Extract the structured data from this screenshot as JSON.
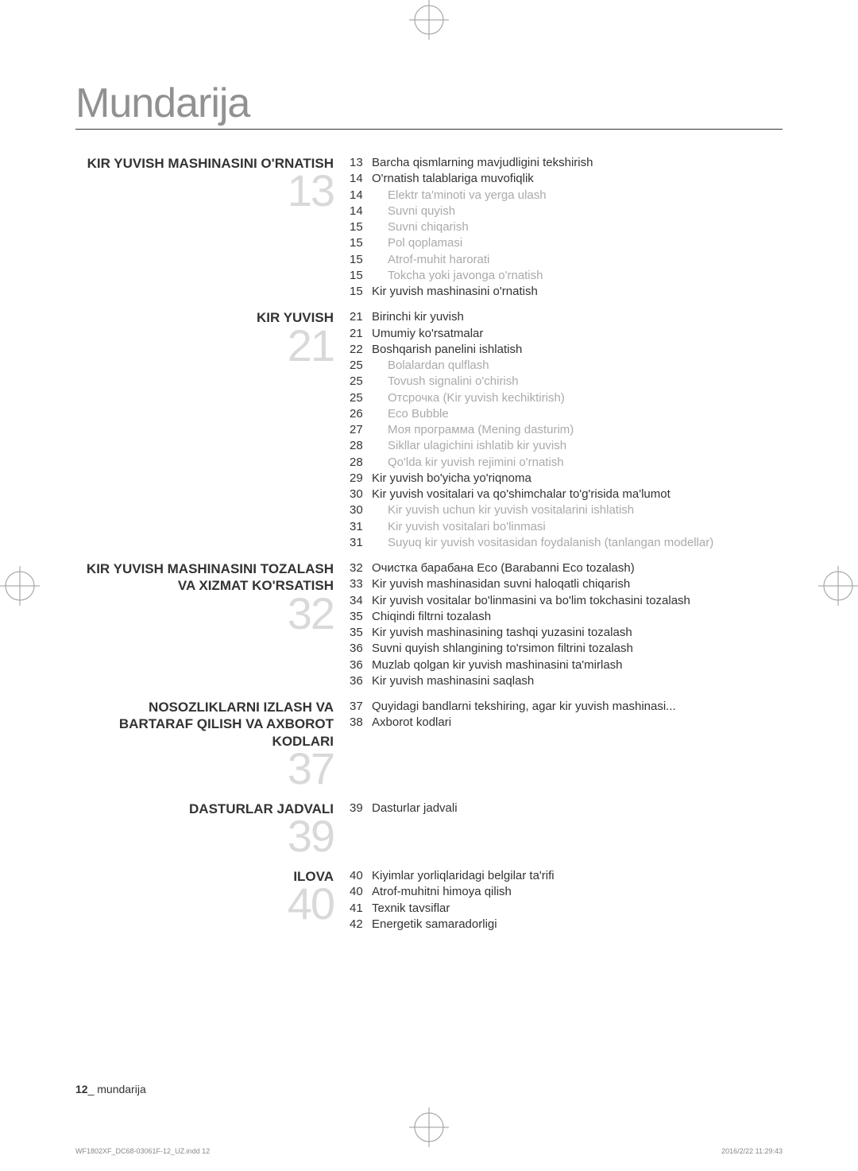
{
  "pageTitle": "Mundarija",
  "sections": [
    {
      "heading": "KIR YUVISH MASHINASINI O'RNATISH",
      "bigNumber": "13",
      "items": [
        {
          "page": "13",
          "text": "Barcha qismlarning mavjudligini tekshirish",
          "sub": false
        },
        {
          "page": "14",
          "text": "O'rnatish talablariga muvofiqlik",
          "sub": false
        },
        {
          "page": "14",
          "text": "Elektr ta'minoti va yerga ulash",
          "sub": true
        },
        {
          "page": "14",
          "text": "Suvni quyish",
          "sub": true
        },
        {
          "page": "15",
          "text": "Suvni chiqarish",
          "sub": true
        },
        {
          "page": "15",
          "text": "Pol qoplamasi",
          "sub": true
        },
        {
          "page": "15",
          "text": "Atrof-muhit harorati",
          "sub": true
        },
        {
          "page": "15",
          "text": "Tokcha yoki javonga o'rnatish",
          "sub": true
        },
        {
          "page": "15",
          "text": "Kir yuvish mashinasini o'rnatish",
          "sub": false
        }
      ]
    },
    {
      "heading": "KIR YUVISH",
      "bigNumber": "21",
      "items": [
        {
          "page": "21",
          "text": "Birinchi kir yuvish",
          "sub": false
        },
        {
          "page": "21",
          "text": "Umumiy ko'rsatmalar",
          "sub": false
        },
        {
          "page": "22",
          "text": "Boshqarish panelini ishlatish",
          "sub": false
        },
        {
          "page": "25",
          "text": "Bolalardan qulflash",
          "sub": true
        },
        {
          "page": "25",
          "text": "Tovush signalini o'chirish",
          "sub": true
        },
        {
          "page": "25",
          "text": "Отсрочка (Kir yuvish kechiktirish)",
          "sub": true
        },
        {
          "page": "26",
          "text": "Eco Bubble",
          "sub": true
        },
        {
          "page": "27",
          "text": "Моя программа (Mening dasturim)",
          "sub": true
        },
        {
          "page": "28",
          "text": "Sikllar ulagichini ishlatib kir yuvish",
          "sub": true
        },
        {
          "page": "28",
          "text": "Qo'lda kir yuvish rejimini o'rnatish",
          "sub": true
        },
        {
          "page": "29",
          "text": "Kir yuvish bo'yicha yo'riqnoma",
          "sub": false
        },
        {
          "page": "30",
          "text": "Kir yuvish vositalari va qo'shimchalar to'g'risida ma'lumot",
          "sub": false
        },
        {
          "page": "30",
          "text": "Kir yuvish uchun kir yuvish vositalarini ishlatish",
          "sub": true
        },
        {
          "page": "31",
          "text": "Kir yuvish vositalari bo'linmasi",
          "sub": true
        },
        {
          "page": "31",
          "text": "Suyuq kir yuvish vositasidan foydalanish (tanlangan modellar)",
          "sub": true
        }
      ]
    },
    {
      "heading": "KIR YUVISH MASHINASINI TOZALASH VA XIZMAT KO'RSATISH",
      "bigNumber": "32",
      "items": [
        {
          "page": "32",
          "text": "Очистка барабана Eco (Barabanni Eco tozalash)",
          "sub": false
        },
        {
          "page": "33",
          "text": "Kir yuvish mashinasidan suvni haloqatli chiqarish",
          "sub": false
        },
        {
          "page": "34",
          "text": "Kir yuvish vositalar bo'linmasini va bo'lim tokchasini tozalash",
          "sub": false
        },
        {
          "page": "35",
          "text": "Chiqindi filtrni tozalash",
          "sub": false
        },
        {
          "page": "35",
          "text": "Kir yuvish mashinasining tashqi yuzasini tozalash",
          "sub": false
        },
        {
          "page": "36",
          "text": "Suvni quyish shlangining to'rsimon filtrini tozalash",
          "sub": false
        },
        {
          "page": "36",
          "text": "Muzlab qolgan kir yuvish mashinasini ta'mirlash",
          "sub": false
        },
        {
          "page": "36",
          "text": "Kir yuvish mashinasini saqlash",
          "sub": false
        }
      ]
    },
    {
      "heading": "NOSOZLIKLARNI IZLASH VA BARTARAF QILISH VA AXBOROT KODLARI",
      "bigNumber": "37",
      "items": [
        {
          "page": "37",
          "text": "Quyidagi bandlarni tekshiring, agar kir yuvish mashinasi...",
          "sub": false
        },
        {
          "page": "38",
          "text": "Axborot kodlari",
          "sub": false
        }
      ]
    },
    {
      "heading": "DASTURLAR JADVALI",
      "bigNumber": "39",
      "items": [
        {
          "page": "39",
          "text": "Dasturlar jadvali",
          "sub": false
        }
      ]
    },
    {
      "heading": "ILOVA",
      "bigNumber": "40",
      "items": [
        {
          "page": "40",
          "text": "Kiyimlar yorliqlaridagi belgilar ta'rifi",
          "sub": false
        },
        {
          "page": "40",
          "text": "Atrof-muhitni himoya qilish",
          "sub": false
        },
        {
          "page": "41",
          "text": "Texnik tavsiflar",
          "sub": false
        },
        {
          "page": "42",
          "text": "Energetik samaradorligi",
          "sub": false
        }
      ]
    }
  ],
  "footer": {
    "pageNum": "12",
    "label": "_ mundarija"
  },
  "printInfo": {
    "left": "WF1802XF_DC68-03061F-12_UZ.indd   12",
    "right": "2016/2/22   11:29:43"
  }
}
